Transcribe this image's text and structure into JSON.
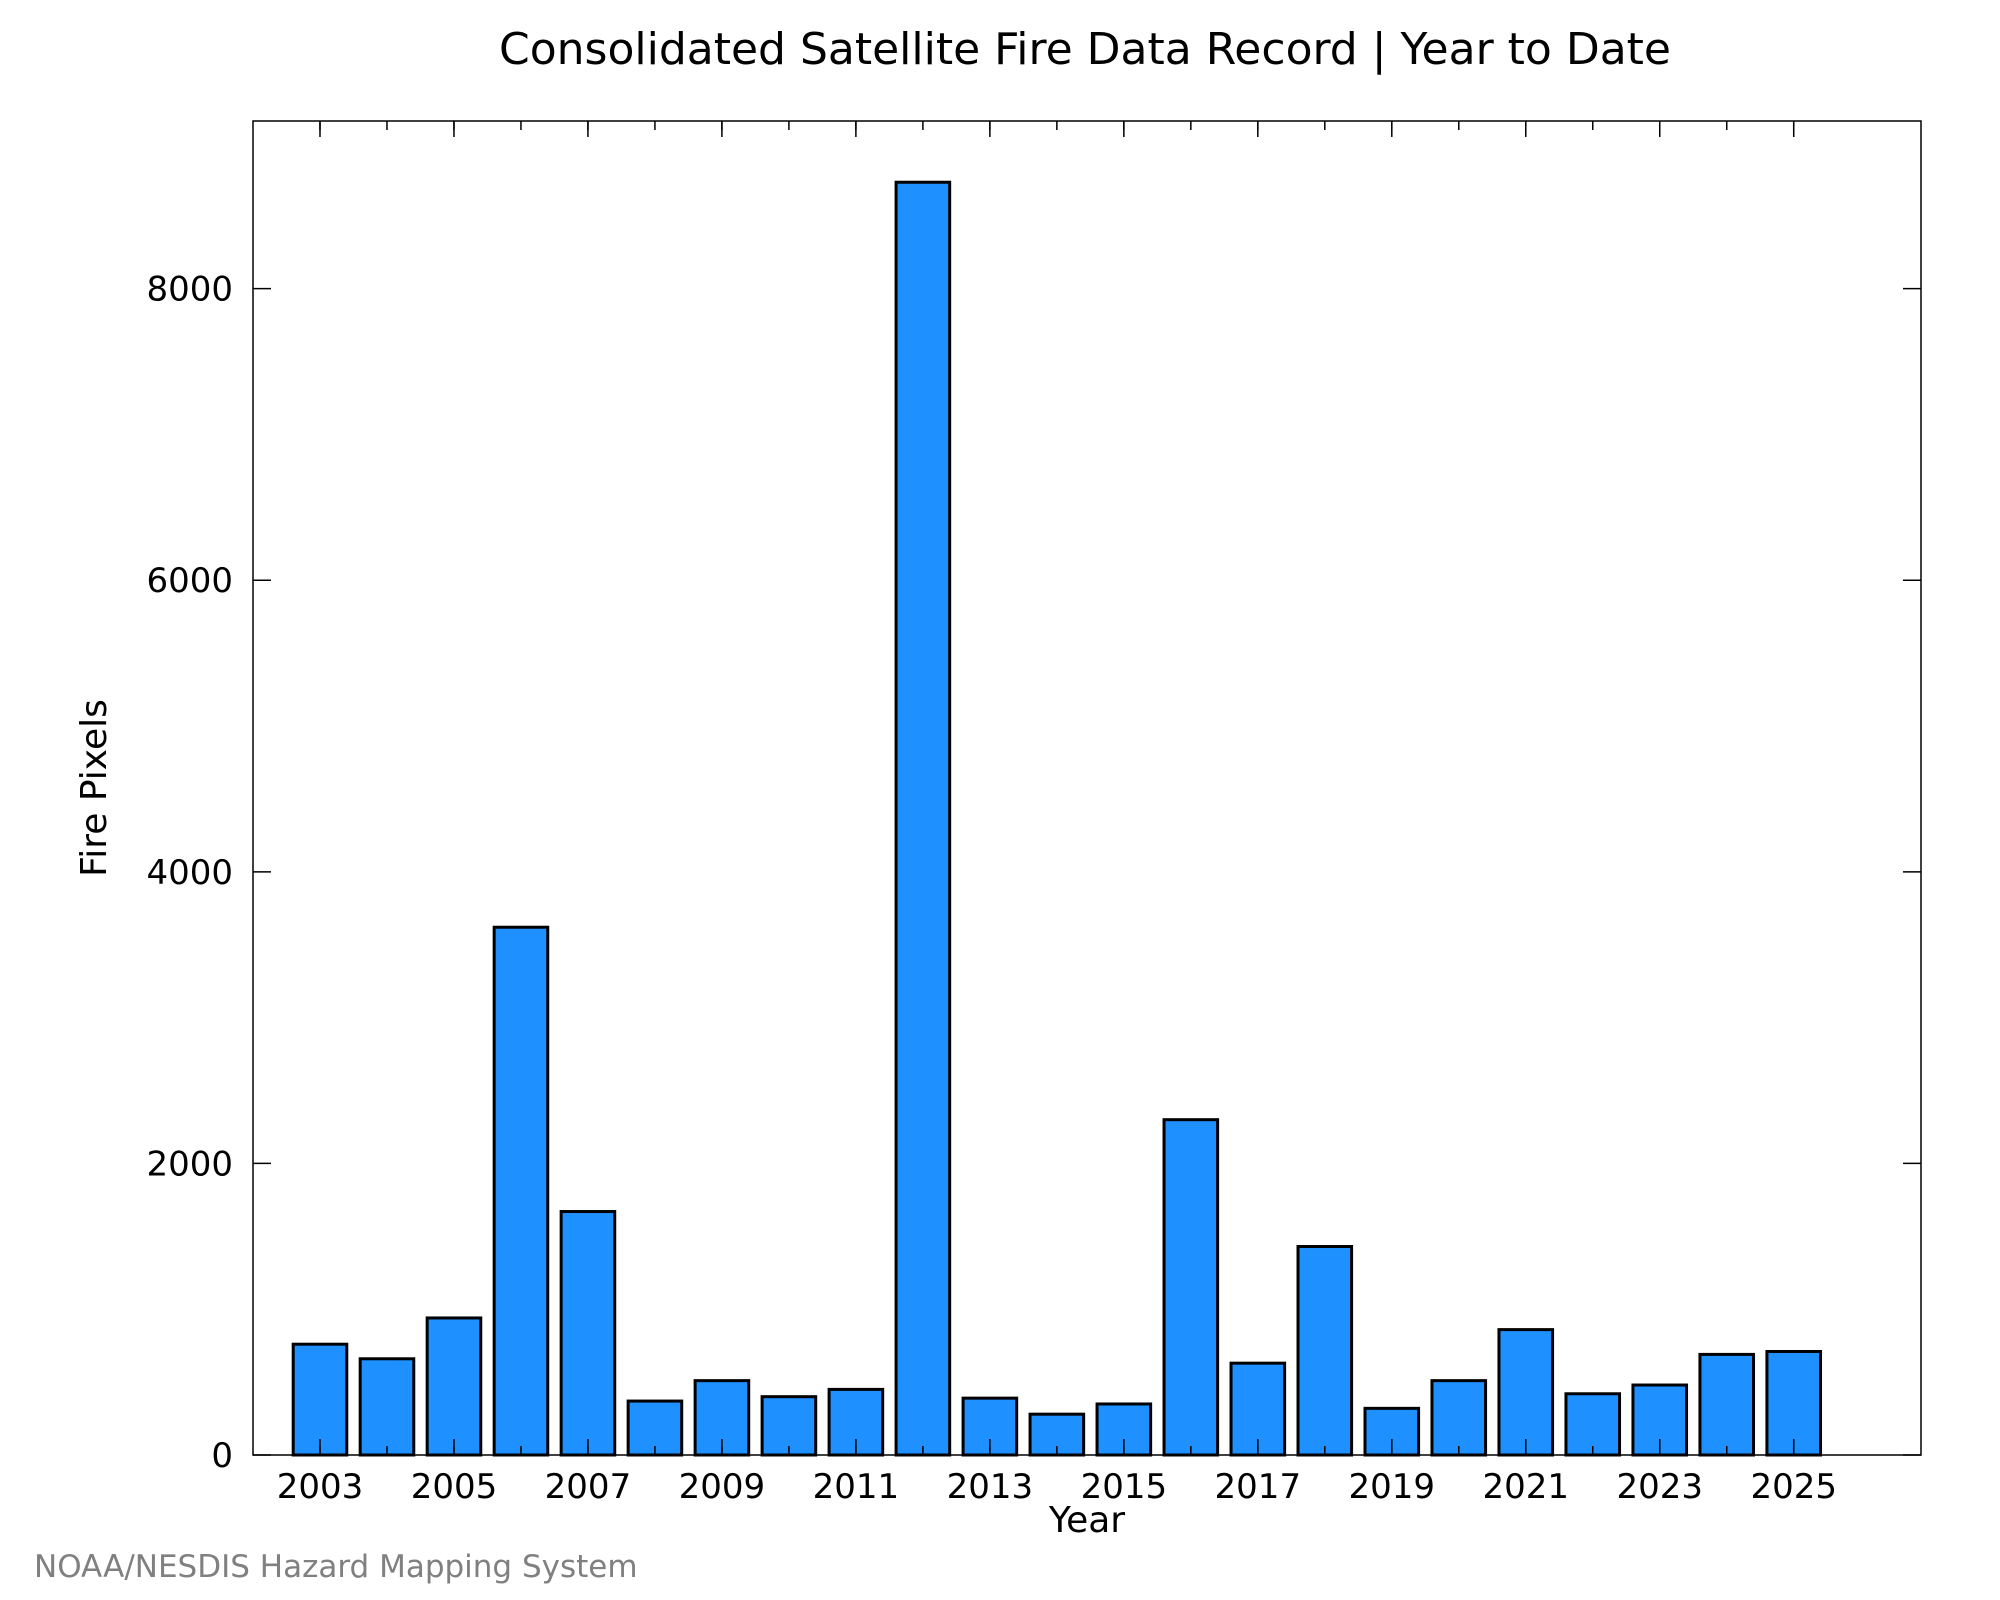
{
  "chart_data": {
    "type": "bar",
    "title": "Consolidated Satellite Fire Data Record | Year to Date",
    "xlabel": "Year",
    "ylabel": "Fire Pixels",
    "categories": [
      "2003",
      "2004",
      "2005",
      "2006",
      "2007",
      "2008",
      "2009",
      "2010",
      "2011",
      "2012",
      "2013",
      "2014",
      "2015",
      "2016",
      "2017",
      "2018",
      "2019",
      "2020",
      "2021",
      "2022",
      "2023",
      "2024",
      "2025"
    ],
    "values": [
      760,
      660,
      940,
      3620,
      1670,
      370,
      510,
      400,
      450,
      8730,
      390,
      280,
      350,
      2300,
      630,
      1430,
      320,
      510,
      860,
      420,
      480,
      690,
      710
    ],
    "xtick_labels": [
      "2003",
      "2005",
      "2007",
      "2009",
      "2011",
      "2013",
      "2015",
      "2017",
      "2019",
      "2021",
      "2023",
      "2025"
    ],
    "yticks": [
      0,
      2000,
      4000,
      6000,
      8000
    ],
    "ylim": [
      0,
      9150
    ],
    "grid": false,
    "bar_color": "#1e90ff",
    "edge_color": "#000000"
  },
  "credit": "NOAA/NESDIS Hazard Mapping System"
}
